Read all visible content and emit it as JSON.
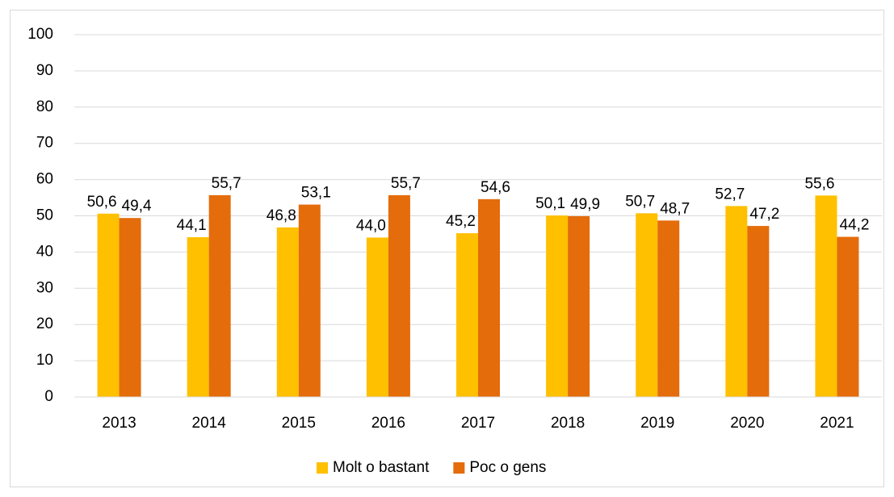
{
  "chart_data": {
    "type": "bar",
    "categories": [
      "2013",
      "2014",
      "2015",
      "2016",
      "2017",
      "2018",
      "2019",
      "2020",
      "2021"
    ],
    "series": [
      {
        "name": "Molt o bastant",
        "color": "#FFC000",
        "values": [
          50.6,
          44.1,
          46.8,
          44.0,
          45.2,
          50.1,
          50.7,
          52.7,
          55.6
        ],
        "value_labels": [
          "50,6",
          "44,1",
          "46,8",
          "44,0",
          "45,2",
          "50,1",
          "50,7",
          "52,7",
          "55,6"
        ]
      },
      {
        "name": "Poc o gens",
        "color": "#E46C0A",
        "values": [
          49.4,
          55.7,
          53.1,
          55.7,
          54.6,
          49.9,
          48.7,
          47.2,
          44.2
        ],
        "value_labels": [
          "49,4",
          "55,7",
          "53,1",
          "55,7",
          "54,6",
          "49,9",
          "48,7",
          "47,2",
          "44,2"
        ]
      }
    ],
    "ylim": [
      0,
      100
    ],
    "yticks": [
      0,
      10,
      20,
      30,
      40,
      50,
      60,
      70,
      80,
      90,
      100
    ],
    "grid": true,
    "legend": "bottom"
  }
}
